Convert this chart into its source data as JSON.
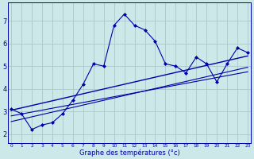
{
  "xlabel": "Graphe des températures (°c)",
  "bg_color": "#cce8e8",
  "plot_bg_color": "#cce8e8",
  "grid_color": "#aac8c8",
  "line_color": "#0000aa",
  "x_ticks": [
    0,
    1,
    2,
    3,
    4,
    5,
    6,
    7,
    8,
    9,
    10,
    11,
    12,
    13,
    14,
    15,
    16,
    17,
    18,
    19,
    20,
    21,
    22,
    23
  ],
  "y_ticks": [
    2,
    3,
    4,
    5,
    6,
    7
  ],
  "xlim": [
    -0.3,
    23.3
  ],
  "ylim": [
    1.6,
    7.8
  ],
  "main_line_x": [
    0,
    1,
    2,
    3,
    4,
    5,
    6,
    7,
    8,
    9,
    10,
    11,
    12,
    13,
    14,
    15,
    16,
    17,
    18,
    19,
    20,
    21,
    22,
    23
  ],
  "main_line_y": [
    3.1,
    2.9,
    2.2,
    2.4,
    2.5,
    2.9,
    3.5,
    4.2,
    5.1,
    5.0,
    6.8,
    7.3,
    6.8,
    6.6,
    6.1,
    5.1,
    5.0,
    4.7,
    5.4,
    5.1,
    4.3,
    5.1,
    5.8,
    5.6
  ],
  "reg_line1_x": [
    0,
    23
  ],
  "reg_line1_y": [
    2.55,
    4.95
  ],
  "reg_line2_x": [
    0,
    23
  ],
  "reg_line2_y": [
    2.8,
    4.75
  ],
  "reg_line3_x": [
    0,
    23
  ],
  "reg_line3_y": [
    3.05,
    5.45
  ],
  "xlabel_fontsize": 6.0,
  "xtick_fontsize": 4.2,
  "ytick_fontsize": 6.0
}
